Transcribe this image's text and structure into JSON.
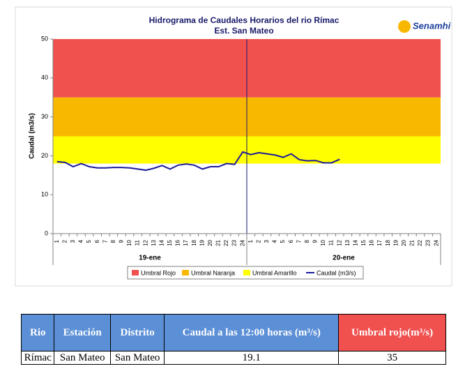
{
  "chart_data": {
    "type": "line",
    "title": "Hidrograma  de Caudales Horarios  del rio Rímac",
    "subtitle": "Est. San Mateo",
    "logo_text": "Senamhi",
    "y_label": "Caudal (m3/s)",
    "ylim": [
      0,
      50
    ],
    "yticks": [
      0,
      10,
      20,
      30,
      40,
      50
    ],
    "categories": [
      "1",
      "2",
      "3",
      "4",
      "5",
      "6",
      "7",
      "8",
      "9",
      "10",
      "11",
      "12",
      "13",
      "14",
      "15",
      "16",
      "17",
      "18",
      "19",
      "20",
      "21",
      "22",
      "23",
      "24",
      "1",
      "2",
      "3",
      "4",
      "5",
      "6",
      "7",
      "8",
      "9",
      "10",
      "11",
      "12",
      "13",
      "14",
      "15",
      "16",
      "17",
      "18",
      "19",
      "20",
      "21",
      "22",
      "23",
      "24"
    ],
    "groups": [
      "19-ene",
      "20-ene"
    ],
    "thresholds": [
      {
        "name": "Umbral Rojo",
        "color": "#f0504e",
        "from": 35,
        "to": 50
      },
      {
        "name": "Umbral Naranja",
        "color": "#f9b800",
        "from": 25,
        "to": 35
      },
      {
        "name": "Umbral Amarillo",
        "color": "#ffff00",
        "from": 18,
        "to": 25
      }
    ],
    "series": [
      {
        "name": "Caudal (m3/s)",
        "color": "#1a1a9c",
        "values": [
          18.5,
          18.3,
          17.2,
          18.0,
          17.2,
          16.9,
          16.9,
          17.0,
          17.0,
          16.9,
          16.6,
          16.3,
          16.8,
          17.5,
          16.6,
          17.6,
          17.9,
          17.6,
          16.6,
          17.2,
          17.2,
          18.0,
          17.8,
          21.0,
          20.3,
          20.8,
          20.5,
          20.2,
          19.6,
          20.5,
          19.0,
          18.7,
          18.8,
          18.2,
          18.2,
          19.1,
          null,
          null,
          null,
          null,
          null,
          null,
          null,
          null,
          null,
          null,
          null,
          null
        ]
      }
    ]
  },
  "table": {
    "headers": [
      "Rio",
      "Estación",
      "Distrito",
      "Caudal a las 12:00 horas (m³/s)",
      "Umbral rojo(m³/s)"
    ],
    "rows": [
      [
        "Rímac",
        "San Mateo",
        "San Mateo",
        "19.1",
        "35"
      ]
    ]
  }
}
